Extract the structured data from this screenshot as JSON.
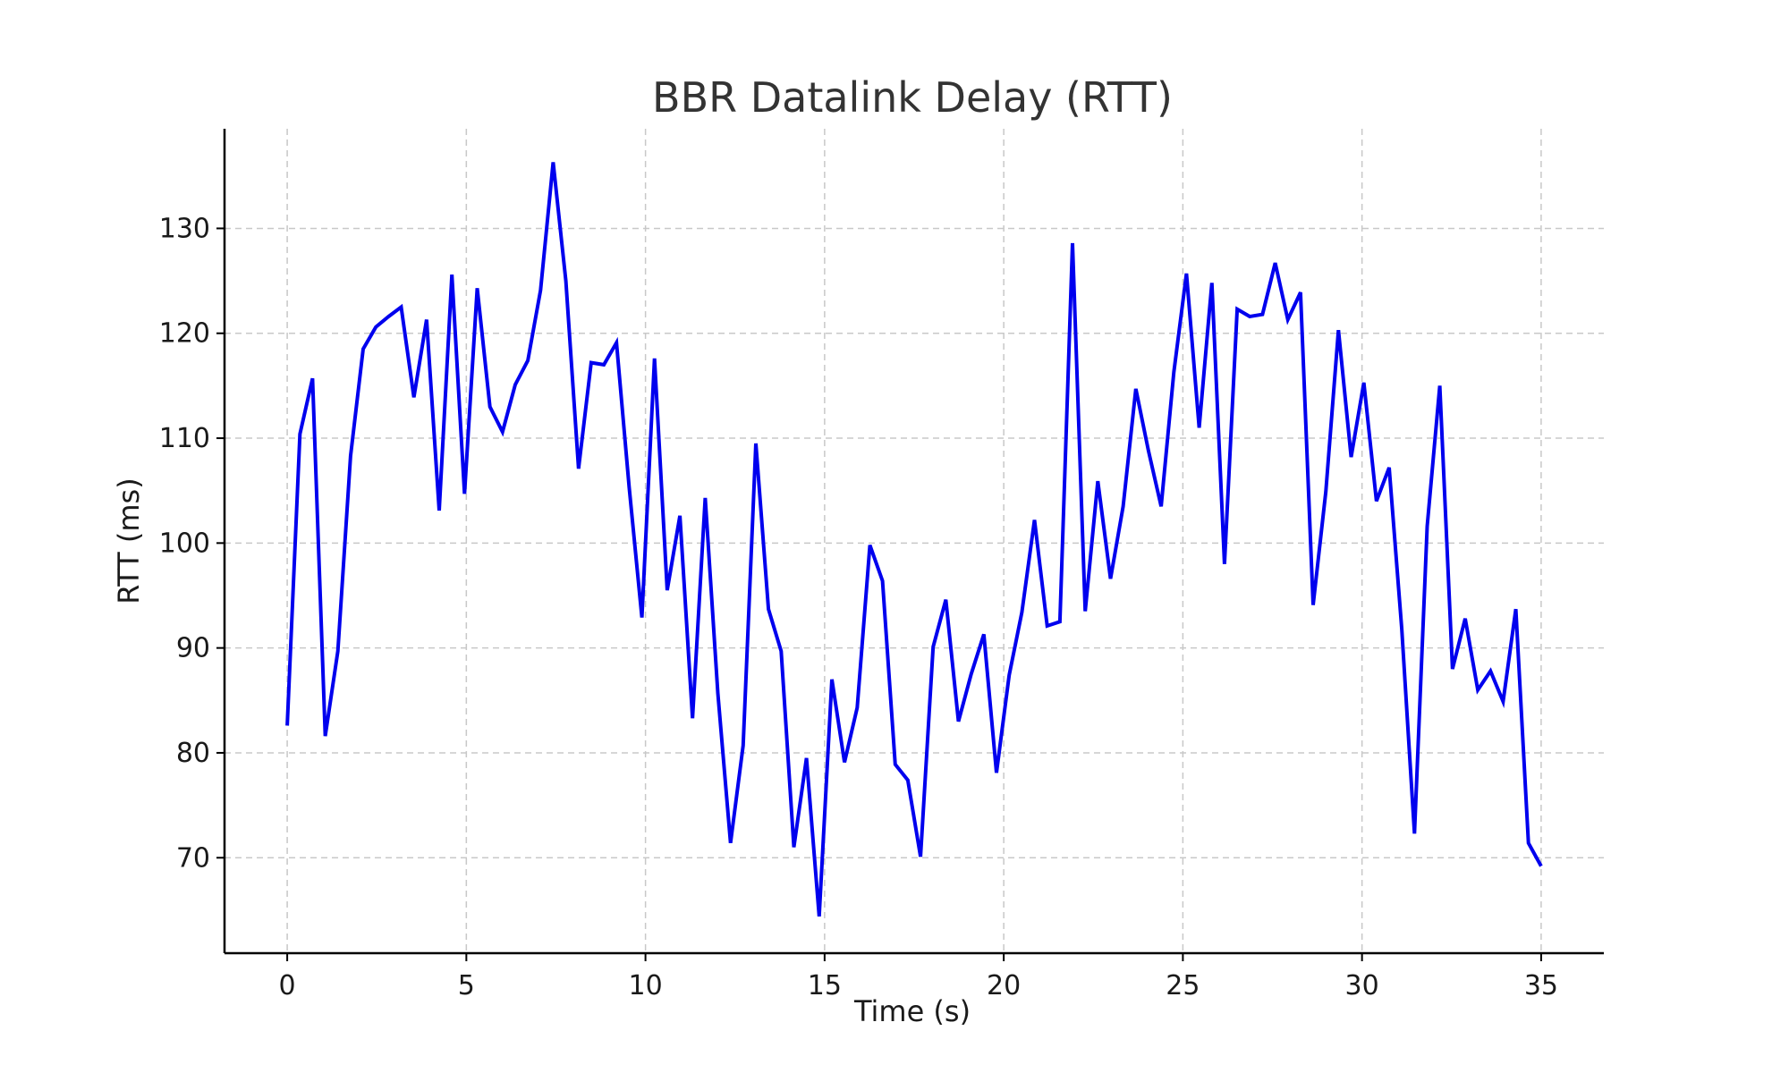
{
  "chart_data": {
    "type": "line",
    "title": "BBR Datalink Delay (RTT)",
    "xlabel": "Time (s)",
    "ylabel": "RTT (ms)",
    "xlim": [
      -1.75,
      36.75
    ],
    "ylim": [
      60.9,
      139.5
    ],
    "xticks": [
      0,
      5,
      10,
      15,
      20,
      25,
      30,
      35
    ],
    "yticks": [
      70,
      80,
      90,
      100,
      110,
      120,
      130
    ],
    "xtick_labels": [
      "0",
      "5",
      "10",
      "15",
      "20",
      "25",
      "30",
      "35"
    ],
    "ytick_labels": [
      "70",
      "80",
      "90",
      "100",
      "110",
      "120",
      "130"
    ],
    "grid": true,
    "color": "#0000ee",
    "series": [
      {
        "x": [
          0.0,
          0.354,
          0.707,
          1.061,
          1.414,
          1.768,
          2.121,
          2.475,
          2.828,
          3.182,
          3.535,
          3.889,
          4.242,
          4.596,
          4.949,
          5.303,
          5.657,
          6.01,
          6.364,
          6.717,
          7.071,
          7.424,
          7.778,
          8.131,
          8.485,
          8.838,
          9.192,
          9.545,
          9.899,
          10.253,
          10.606,
          10.96,
          11.313,
          11.667,
          12.02,
          12.374,
          12.727,
          13.081,
          13.434,
          13.788,
          14.141,
          14.495,
          14.848,
          15.202,
          15.556,
          15.909,
          16.263,
          16.616,
          16.97,
          17.323,
          17.677,
          18.03,
          18.384,
          18.737,
          19.091,
          19.444,
          19.798,
          20.152,
          20.505,
          20.859,
          21.212,
          21.566,
          21.919,
          22.273,
          22.626,
          22.98,
          23.333,
          23.687,
          24.04,
          24.394,
          24.747,
          25.101,
          25.455,
          25.808,
          26.162,
          26.515,
          26.869,
          27.222,
          27.576,
          27.929,
          28.283,
          28.636,
          28.99,
          29.343,
          29.697,
          30.051,
          30.404,
          30.758,
          31.111,
          31.465,
          31.818,
          32.172,
          32.525,
          32.879,
          33.232,
          33.586,
          33.939,
          34.293,
          34.646,
          35.0
        ],
        "y": [
          82.6,
          110.4,
          115.7,
          81.6,
          89.7,
          108.3,
          118.5,
          120.6,
          121.6,
          122.5,
          113.9,
          121.3,
          103.1,
          125.6,
          104.7,
          124.3,
          113.0,
          110.6,
          115.1,
          117.4,
          124.1,
          136.3,
          125.0,
          107.1,
          117.2,
          117.0,
          119.1,
          105.3,
          92.9,
          117.6,
          95.5,
          102.6,
          83.3,
          104.3,
          85.7,
          71.4,
          80.7,
          109.5,
          93.7,
          89.7,
          71.0,
          79.5,
          64.4,
          87.0,
          79.1,
          84.3,
          99.8,
          96.4,
          78.9,
          77.4,
          70.1,
          90.1,
          94.6,
          83.0,
          87.5,
          91.3,
          78.1,
          87.4,
          93.4,
          102.2,
          92.1,
          92.5,
          128.6,
          93.5,
          105.9,
          96.6,
          103.5,
          114.7,
          108.8,
          103.5,
          116.3,
          125.7,
          111.0,
          124.8,
          98.0,
          122.3,
          121.6,
          121.8,
          126.7,
          121.3,
          123.9,
          94.1,
          104.9,
          120.3,
          108.2,
          115.3,
          104.0,
          107.2,
          91.8,
          72.3,
          101.6,
          115.0,
          88.0,
          92.8,
          86.0,
          87.8,
          84.9,
          93.7,
          71.4,
          69.2
        ]
      }
    ]
  }
}
